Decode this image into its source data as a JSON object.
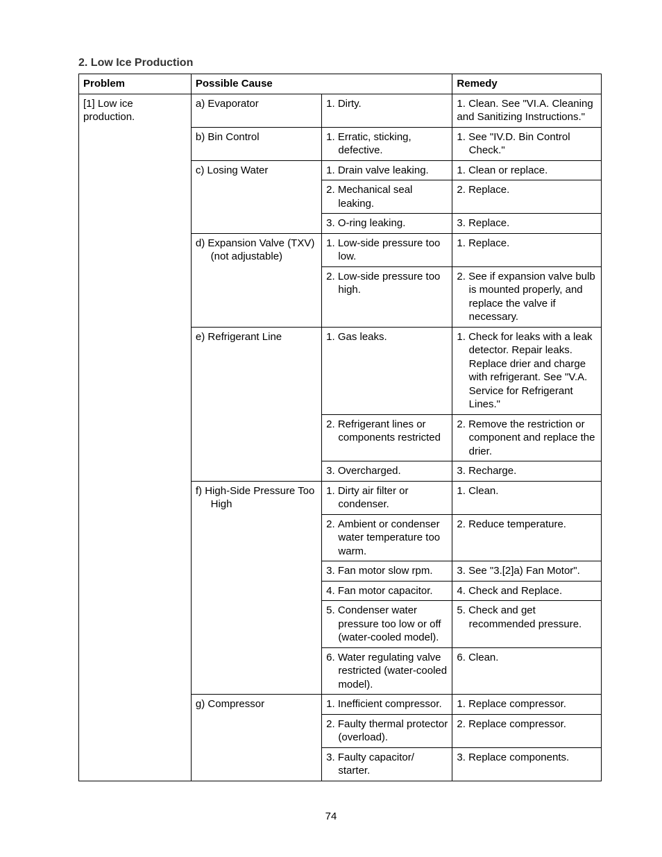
{
  "section_title": "2. Low Ice Production",
  "page_number": "74",
  "headers": {
    "h1": "Problem",
    "h2": "Possible Cause",
    "h3": "Remedy"
  },
  "problem": "[1] Low ice production.",
  "rows": [
    {
      "cause": "a) Evaporator",
      "detail": "1. Dirty.",
      "remedy": "1. Clean. See \"VI.A. Cleaning and Sanitizing Instructions.\"",
      "indent": false,
      "cause_span": 1
    },
    {
      "cause": "b) Bin Control",
      "detail": "1. Erratic, sticking, defective.",
      "remedy": "1. See \"IV.D. Bin Control Check.\"",
      "indent": true,
      "cause_span": 1
    },
    {
      "cause": "c) Losing Water",
      "detail": "1. Drain valve leaking.",
      "remedy": "1. Clean or replace.",
      "indent": false,
      "cause_span": 3
    },
    {
      "cause": "",
      "detail": "2. Mechanical seal leaking.",
      "remedy": "2. Replace.",
      "indent": true,
      "cause_span": 0
    },
    {
      "cause": "",
      "detail": "3. O-ring leaking.",
      "remedy": "3. Replace.",
      "indent": false,
      "cause_span": 0
    },
    {
      "cause": "d) Expansion Valve (TXV) (not adjustable)",
      "detail": "1. Low-side pressure too low.",
      "remedy": "1. Replace.",
      "indent": true,
      "cause_span": 2
    },
    {
      "cause": "",
      "detail": "2. Low-side pressure too high.",
      "remedy": "2. See if expansion valve bulb is mounted properly, and replace the valve if necessary.",
      "indent": true,
      "cause_span": 0
    },
    {
      "cause": "e) Refrigerant Line",
      "detail": "1. Gas leaks.",
      "remedy": "1. Check for leaks with a leak detector. Repair leaks. Replace drier and charge with refrigerant. See \"V.A. Service for Refrigerant Lines.\"",
      "indent": true,
      "cause_span": 3
    },
    {
      "cause": "",
      "detail": "2. Refrigerant lines or components restricted",
      "remedy": "2. Remove the restriction or component and replace the drier.",
      "indent": true,
      "cause_span": 0
    },
    {
      "cause": "",
      "detail": "3. Overcharged.",
      "remedy": "3. Recharge.",
      "indent": false,
      "cause_span": 0
    },
    {
      "cause": "f) High-Side Pressure Too High",
      "detail": "1. Dirty air filter or condenser.",
      "remedy": "1. Clean.",
      "indent": true,
      "cause_span": 6
    },
    {
      "cause": "",
      "detail": "2. Ambient or condenser water temperature too warm.",
      "remedy": "2. Reduce temperature.",
      "indent": true,
      "cause_span": 0
    },
    {
      "cause": "",
      "detail": "3. Fan motor slow rpm.",
      "remedy": "3. See \"3.[2]a) Fan Motor\".",
      "indent": false,
      "cause_span": 0
    },
    {
      "cause": "",
      "detail": "4. Fan motor capacitor.",
      "remedy": "4. Check and Replace.",
      "indent": false,
      "cause_span": 0
    },
    {
      "cause": "",
      "detail": "5. Condenser water pressure too low or off (water-cooled model).",
      "remedy": "5. Check and get recommended pressure.",
      "indent": true,
      "cause_span": 0
    },
    {
      "cause": "",
      "detail": "6. Water regulating valve restricted (water-cooled model).",
      "remedy": "6. Clean.",
      "indent": true,
      "cause_span": 0
    },
    {
      "cause": "g) Compressor",
      "detail": "1. Inefficient compressor.",
      "remedy": "1. Replace compressor.",
      "indent": false,
      "cause_span": 3
    },
    {
      "cause": "",
      "detail": "2. Faulty thermal protector (overload).",
      "remedy": "2. Replace compressor.",
      "indent": true,
      "cause_span": 0
    },
    {
      "cause": "",
      "detail": "3. Faulty capacitor/ starter.",
      "remedy": "3. Replace components.",
      "indent": true,
      "cause_span": 0
    }
  ]
}
